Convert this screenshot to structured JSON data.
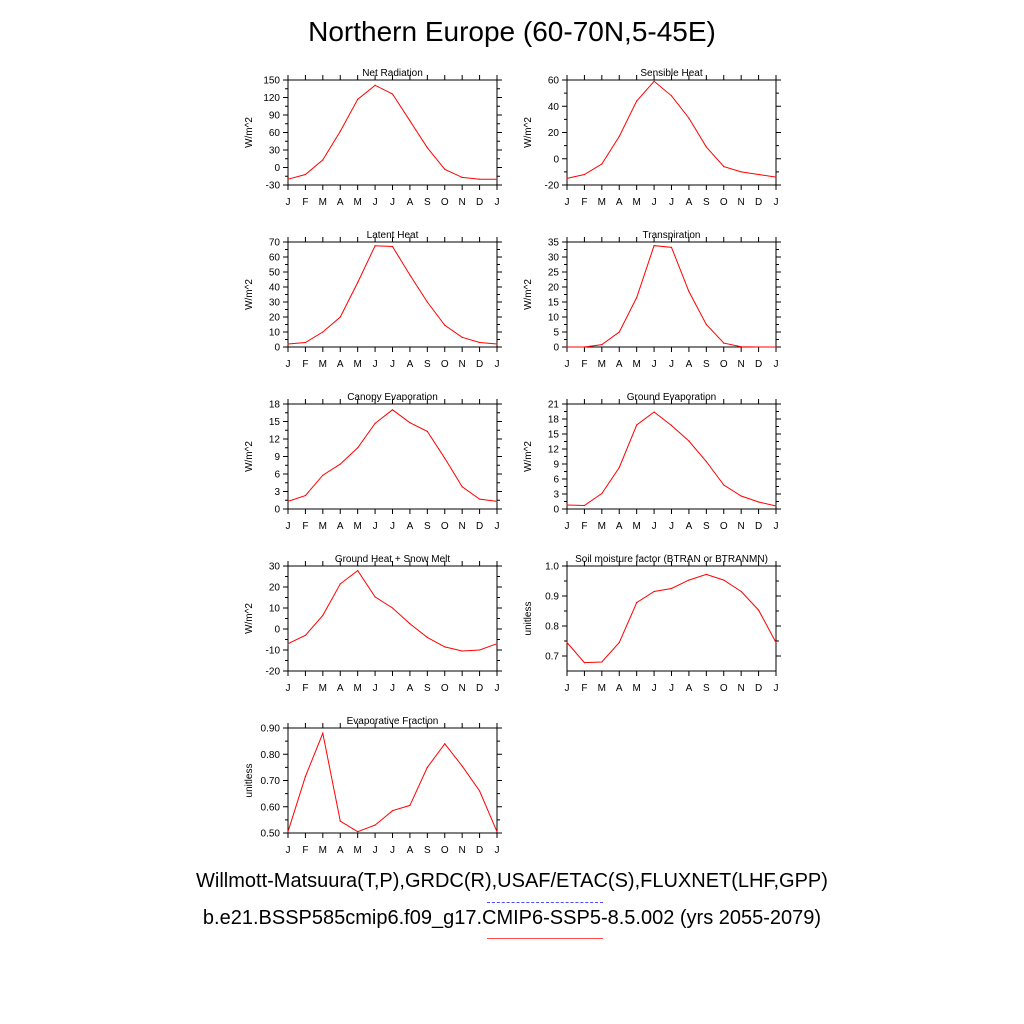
{
  "title": "Northern Europe (60-70N,5-45E)",
  "colors": {
    "series": "#ff0000",
    "obs_legend": "#4b4bff",
    "case_legend": "#ff4b4b",
    "axis": "#000000"
  },
  "legend": {
    "obs_text": "Willmott-Matsuura(T,P),GRDC(R),USAF/ETAC(S),FLUXNET(LHF,GPP)",
    "case_text": "b.e21.BSSP585cmip6.f09_g17.CMIP6-SSP5-8.5.002 (yrs 2055-2079)"
  },
  "chart_data": [
    {
      "type": "line",
      "title": "Net Radiation",
      "xlabel": "",
      "ylabel": "W/m^2",
      "categories": [
        "J",
        "F",
        "M",
        "A",
        "M",
        "J",
        "J",
        "A",
        "S",
        "O",
        "N",
        "D",
        "J"
      ],
      "ylim": [
        -30,
        150
      ],
      "yticks": [
        "-30",
        "0",
        "30",
        "60",
        "90",
        "120",
        "150"
      ],
      "series": [
        {
          "values": [
            -20,
            -12,
            13,
            62,
            117,
            141,
            126,
            80,
            34,
            -3,
            -17,
            -20,
            -20
          ]
        }
      ]
    },
    {
      "type": "line",
      "title": "Sensible Heat",
      "xlabel": "",
      "ylabel": "W/m^2",
      "categories": [
        "J",
        "F",
        "M",
        "A",
        "M",
        "J",
        "J",
        "A",
        "S",
        "O",
        "N",
        "D",
        "J"
      ],
      "ylim": [
        -20,
        60
      ],
      "yticks": [
        "-20",
        "0",
        "20",
        "40",
        "60"
      ],
      "series": [
        {
          "values": [
            -15,
            -12,
            -4,
            17,
            44,
            59,
            48,
            31,
            9,
            -6,
            -10,
            -12,
            -14
          ]
        }
      ]
    },
    {
      "type": "line",
      "title": "Latent Heat",
      "xlabel": "",
      "ylabel": "W/m^2",
      "categories": [
        "J",
        "F",
        "M",
        "A",
        "M",
        "J",
        "J",
        "A",
        "S",
        "O",
        "N",
        "D",
        "J"
      ],
      "ylim": [
        0,
        70
      ],
      "yticks": [
        "0",
        "10",
        "20",
        "30",
        "40",
        "50",
        "60",
        "70"
      ],
      "series": [
        {
          "values": [
            2,
            3,
            10,
            20,
            43,
            67.5,
            67,
            48,
            30,
            14.5,
            6.5,
            3,
            2
          ]
        }
      ]
    },
    {
      "type": "line",
      "title": "Transpiration",
      "xlabel": "",
      "ylabel": "W/m^2",
      "categories": [
        "J",
        "F",
        "M",
        "A",
        "M",
        "J",
        "J",
        "A",
        "S",
        "O",
        "N",
        "D",
        "J"
      ],
      "ylim": [
        0,
        35
      ],
      "yticks": [
        "0",
        "5",
        "10",
        "15",
        "20",
        "25",
        "30",
        "35"
      ],
      "series": [
        {
          "values": [
            0,
            0,
            0.8,
            5,
            16.5,
            33.8,
            33.2,
            18.5,
            7.5,
            1.3,
            0.1,
            0,
            0
          ]
        }
      ]
    },
    {
      "type": "line",
      "title": "Canopy Evaporation",
      "xlabel": "",
      "ylabel": "W/m^2",
      "categories": [
        "J",
        "F",
        "M",
        "A",
        "M",
        "J",
        "J",
        "A",
        "S",
        "O",
        "N",
        "D",
        "J"
      ],
      "ylim": [
        0,
        18
      ],
      "yticks": [
        "0",
        "3",
        "6",
        "9",
        "12",
        "15",
        "18"
      ],
      "series": [
        {
          "values": [
            1.3,
            2.3,
            5.8,
            7.7,
            10.5,
            14.7,
            17,
            14.8,
            13.3,
            8.7,
            3.8,
            1.7,
            1.3
          ]
        }
      ]
    },
    {
      "type": "line",
      "title": "Ground Evaporation",
      "xlabel": "",
      "ylabel": "W/m^2",
      "categories": [
        "J",
        "F",
        "M",
        "A",
        "M",
        "J",
        "J",
        "A",
        "S",
        "O",
        "N",
        "D",
        "J"
      ],
      "ylim": [
        0,
        21
      ],
      "yticks": [
        "0",
        "3",
        "6",
        "9",
        "12",
        "15",
        "18",
        "21"
      ],
      "series": [
        {
          "values": [
            0.8,
            0.7,
            3.1,
            8.3,
            16.8,
            19.4,
            16.7,
            13.6,
            9.5,
            4.8,
            2.6,
            1.4,
            0.6
          ]
        }
      ]
    },
    {
      "type": "line",
      "title": "Ground Heat + Snow Melt",
      "xlabel": "",
      "ylabel": "W/m^2",
      "categories": [
        "J",
        "F",
        "M",
        "A",
        "M",
        "J",
        "J",
        "A",
        "S",
        "O",
        "N",
        "D",
        "J"
      ],
      "ylim": [
        -20,
        30
      ],
      "yticks": [
        "-20",
        "-10",
        "0",
        "10",
        "20",
        "30"
      ],
      "series": [
        {
          "values": [
            -7,
            -3,
            6.5,
            21.5,
            27.8,
            15.3,
            10,
            2.5,
            -4,
            -8.5,
            -10.5,
            -10,
            -7
          ]
        }
      ]
    },
    {
      "type": "line",
      "title": "Soil moisture factor (BTRAN or BTRANMN)",
      "xlabel": "",
      "ylabel": "unitless",
      "categories": [
        "J",
        "F",
        "M",
        "A",
        "M",
        "J",
        "J",
        "A",
        "S",
        "O",
        "N",
        "D",
        "J"
      ],
      "ylim": [
        0.65,
        1.0
      ],
      "yticks": [
        "0.7",
        "0.8",
        "0.9",
        "1.0"
      ],
      "ytick_values": [
        0.7,
        0.8,
        0.9,
        1.0
      ],
      "series": [
        {
          "values": [
            0.745,
            0.678,
            0.68,
            0.745,
            0.878,
            0.915,
            0.925,
            0.953,
            0.972,
            0.953,
            0.915,
            0.853,
            0.745
          ]
        }
      ]
    },
    {
      "type": "line",
      "title": "Evaporative Fraction",
      "xlabel": "",
      "ylabel": "unitless",
      "categories": [
        "J",
        "F",
        "M",
        "A",
        "M",
        "J",
        "J",
        "A",
        "S",
        "O",
        "N",
        "D",
        "J"
      ],
      "ylim": [
        0.5,
        0.9
      ],
      "yticks": [
        "0.50",
        "0.60",
        "0.70",
        "0.80",
        "0.90"
      ],
      "series": [
        {
          "values": [
            0.505,
            0.715,
            0.88,
            0.545,
            0.505,
            0.53,
            0.585,
            0.605,
            0.75,
            0.84,
            0.755,
            0.66,
            0.505
          ]
        }
      ]
    }
  ]
}
